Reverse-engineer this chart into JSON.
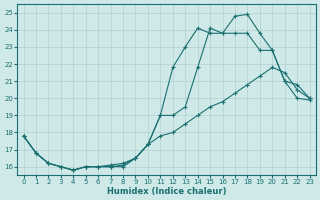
{
  "xlabel": "Humidex (Indice chaleur)",
  "background_color": "#cfe8e8",
  "grid_color": "#b0d0d0",
  "line_color": "#1a7070",
  "xlim": [
    -0.5,
    23.5
  ],
  "ylim": [
    15.5,
    25.5
  ],
  "yticks": [
    16,
    17,
    18,
    19,
    20,
    21,
    22,
    23,
    24,
    25
  ],
  "xticks": [
    0,
    1,
    2,
    3,
    4,
    5,
    6,
    7,
    8,
    9,
    10,
    11,
    12,
    13,
    14,
    15,
    16,
    17,
    18,
    19,
    20,
    21,
    22,
    23
  ],
  "line1_x": [
    0,
    1,
    2,
    3,
    4,
    5,
    6,
    7,
    8,
    9,
    10,
    11,
    12,
    13,
    14,
    15,
    16,
    17,
    18,
    19,
    20,
    21,
    22,
    23
  ],
  "line1_y": [
    17.8,
    16.8,
    16.2,
    16.0,
    15.8,
    16.0,
    16.0,
    16.0,
    16.1,
    16.5,
    17.3,
    19.0,
    21.8,
    23.0,
    24.1,
    23.8,
    23.8,
    24.8,
    24.9,
    23.8,
    22.8,
    21.0,
    20.0,
    19.9
  ],
  "line2_x": [
    0,
    1,
    2,
    3,
    4,
    5,
    6,
    7,
    8,
    9,
    10,
    11,
    12,
    13,
    14,
    15,
    16,
    17,
    18,
    19,
    20,
    21,
    22,
    23
  ],
  "line2_y": [
    17.8,
    16.8,
    16.2,
    16.0,
    15.8,
    16.0,
    16.0,
    16.0,
    16.0,
    16.5,
    17.3,
    19.0,
    19.0,
    19.5,
    21.8,
    24.1,
    23.8,
    23.8,
    23.8,
    22.8,
    22.8,
    21.0,
    20.8,
    20.0
  ],
  "line3_x": [
    0,
    1,
    2,
    3,
    4,
    5,
    6,
    7,
    8,
    9,
    10,
    11,
    12,
    13,
    14,
    15,
    16,
    17,
    18,
    19,
    20,
    21,
    22,
    23
  ],
  "line3_y": [
    17.8,
    16.8,
    16.2,
    16.0,
    15.8,
    16.0,
    16.0,
    16.1,
    16.2,
    16.5,
    17.3,
    17.8,
    18.0,
    18.5,
    19.0,
    19.5,
    19.8,
    20.3,
    20.8,
    21.3,
    21.8,
    21.5,
    20.5,
    20.0
  ]
}
